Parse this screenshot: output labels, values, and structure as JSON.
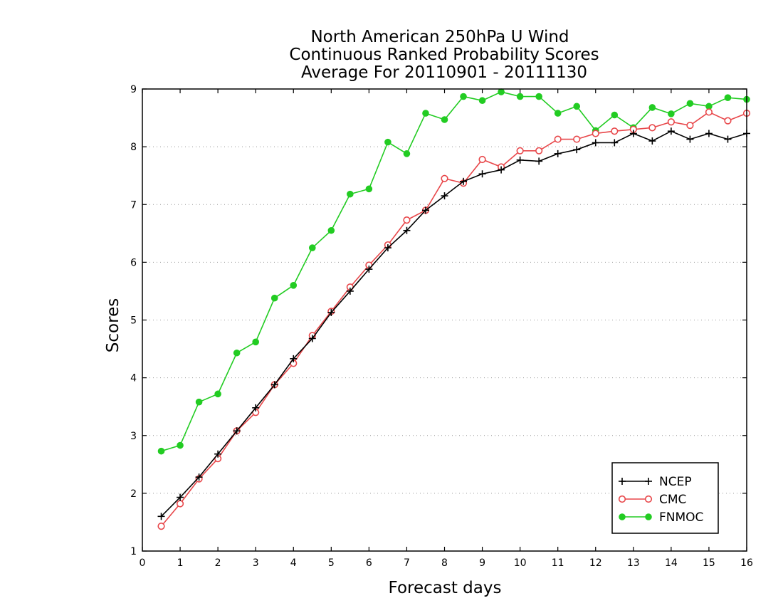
{
  "chart_data": {
    "type": "line",
    "title": [
      "North American 250hPa U Wind",
      "Continuous Ranked Probability Scores",
      "Average For 20110901 - 20111130"
    ],
    "xlabel": "Forecast days",
    "ylabel": "Scores",
    "xlim": [
      0,
      16
    ],
    "ylim": [
      1,
      9
    ],
    "xticks": [
      0,
      1,
      2,
      3,
      4,
      5,
      6,
      7,
      8,
      9,
      10,
      11,
      12,
      13,
      14,
      15,
      16
    ],
    "yticks": [
      1,
      2,
      3,
      4,
      5,
      6,
      7,
      8,
      9
    ],
    "grid": "horizontal-dotted",
    "legend_position": "bottom-right",
    "x": [
      0.5,
      1,
      1.5,
      2,
      2.5,
      3,
      3.5,
      4,
      4.5,
      5,
      5.5,
      6,
      6.5,
      7,
      7.5,
      8,
      8.5,
      9,
      9.5,
      10,
      10.5,
      11,
      11.5,
      12,
      12.5,
      13,
      13.5,
      14,
      14.5,
      15,
      15.5,
      16
    ],
    "series": [
      {
        "name": "NCEP",
        "color": "#000000",
        "marker": "plus",
        "values": [
          1.6,
          1.93,
          2.28,
          2.68,
          3.08,
          3.48,
          3.88,
          4.33,
          4.68,
          5.13,
          5.5,
          5.88,
          6.25,
          6.55,
          6.9,
          7.15,
          7.4,
          7.53,
          7.6,
          7.77,
          7.75,
          7.88,
          7.95,
          8.07,
          8.07,
          8.23,
          8.1,
          8.27,
          8.13,
          8.23,
          8.13,
          8.23
        ]
      },
      {
        "name": "CMC",
        "color": "#e8474a",
        "marker": "open-circle",
        "values": [
          1.43,
          1.82,
          2.25,
          2.6,
          3.08,
          3.4,
          3.88,
          4.25,
          4.73,
          5.15,
          5.57,
          5.95,
          6.3,
          6.73,
          6.9,
          7.45,
          7.37,
          7.78,
          7.65,
          7.93,
          7.93,
          8.13,
          8.13,
          8.23,
          8.27,
          8.3,
          8.33,
          8.43,
          8.37,
          8.6,
          8.45,
          8.58
        ]
      },
      {
        "name": "FNMOC",
        "color": "#22cc22",
        "marker": "filled-circle",
        "values": [
          2.73,
          2.83,
          3.58,
          3.72,
          4.43,
          4.62,
          5.38,
          5.6,
          6.25,
          6.55,
          7.18,
          7.27,
          8.08,
          7.88,
          8.58,
          8.47,
          8.87,
          8.8,
          8.95,
          8.87,
          8.87,
          8.58,
          8.7,
          8.28,
          8.55,
          8.33,
          8.68,
          8.57,
          8.75,
          8.7,
          8.85,
          8.82
        ]
      }
    ]
  }
}
